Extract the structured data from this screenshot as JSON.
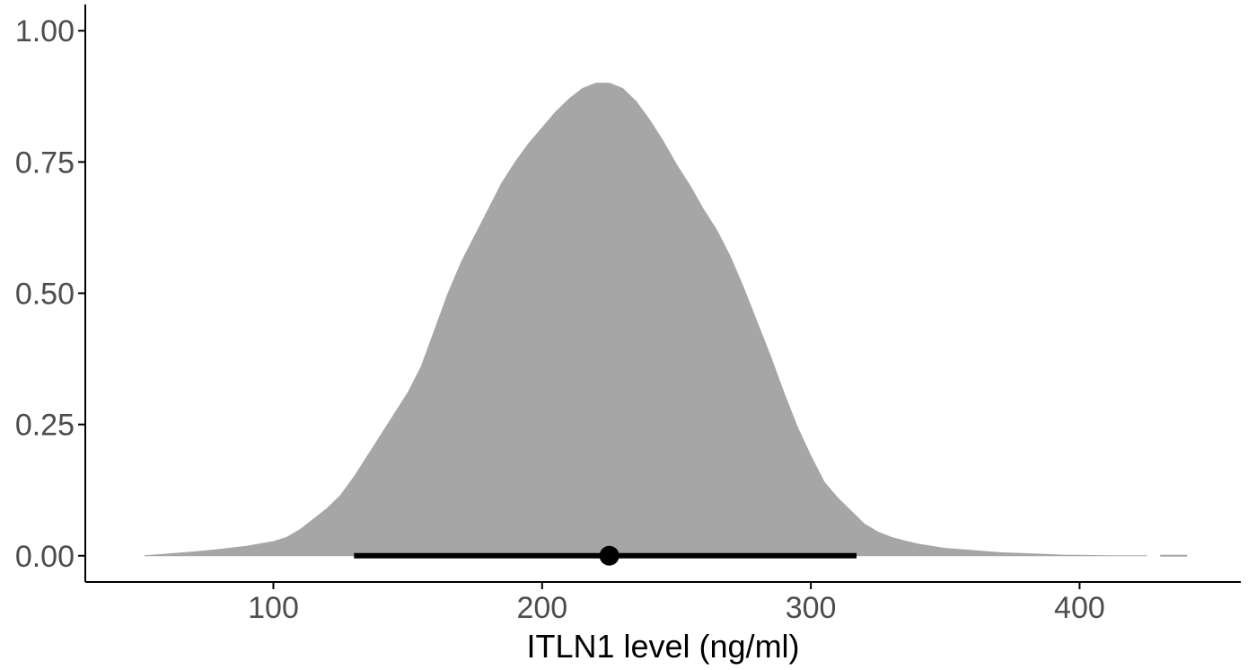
{
  "chart_data": {
    "type": "area",
    "title": "",
    "xlabel": "ITLN1 level (ng/ml)",
    "ylabel": "",
    "xlim": [
      30,
      460
    ],
    "ylim": [
      -0.05,
      1.05
    ],
    "x_ticks": [
      100,
      200,
      300,
      400
    ],
    "x_tick_labels": [
      "100",
      "200",
      "300",
      "400"
    ],
    "y_ticks": [
      0,
      0.25,
      0.5,
      0.75,
      1.0
    ],
    "y_tick_labels": [
      "0.00",
      "0.25",
      "0.50",
      "0.75",
      "1.00"
    ],
    "grid": false,
    "legend": "none",
    "fill_color": "#a6a6a6",
    "line_color": "#000000",
    "density": {
      "x": [
        52,
        60,
        70,
        80,
        90,
        100,
        105,
        110,
        115,
        120,
        125,
        130,
        135,
        140,
        145,
        150,
        155,
        160,
        165,
        170,
        175,
        180,
        185,
        190,
        195,
        200,
        205,
        210,
        215,
        220,
        225,
        230,
        235,
        240,
        245,
        250,
        255,
        260,
        265,
        270,
        275,
        280,
        285,
        290,
        295,
        300,
        305,
        310,
        315,
        320,
        325,
        330,
        335,
        340,
        345,
        350,
        355,
        360,
        365,
        370,
        375,
        380,
        385,
        390,
        395,
        400,
        410,
        420,
        425
      ],
      "y": [
        0.0,
        0.003,
        0.007,
        0.012,
        0.018,
        0.027,
        0.035,
        0.05,
        0.07,
        0.09,
        0.115,
        0.15,
        0.19,
        0.23,
        0.27,
        0.31,
        0.36,
        0.43,
        0.5,
        0.56,
        0.61,
        0.66,
        0.71,
        0.75,
        0.785,
        0.815,
        0.845,
        0.87,
        0.89,
        0.9,
        0.9,
        0.89,
        0.865,
        0.83,
        0.79,
        0.745,
        0.705,
        0.66,
        0.62,
        0.57,
        0.51,
        0.445,
        0.38,
        0.31,
        0.245,
        0.19,
        0.14,
        0.11,
        0.085,
        0.06,
        0.045,
        0.035,
        0.028,
        0.022,
        0.018,
        0.014,
        0.012,
        0.01,
        0.008,
        0.006,
        0.005,
        0.004,
        0.003,
        0.002,
        0.001,
        0.001,
        0.0,
        0.0,
        0.0
      ]
    },
    "tail_segment": {
      "x": [
        430,
        440
      ],
      "y": [
        0.0,
        0.0
      ]
    },
    "interval": {
      "low": 130,
      "high": 317,
      "point": 225,
      "y": 0
    }
  }
}
